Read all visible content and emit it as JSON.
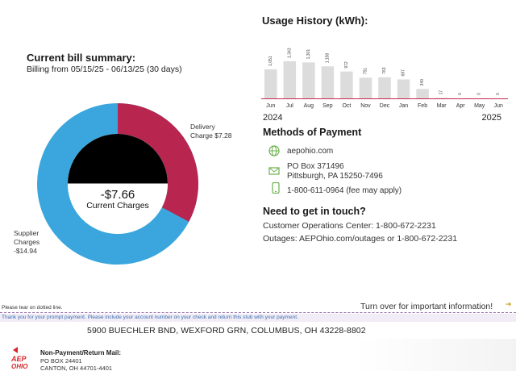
{
  "bill_summary": {
    "title": "Current bill summary:",
    "period": "Billing from 05/15/25 - 06/13/25 (30 days)",
    "current_charges_amount": "-$7.66",
    "current_charges_label": "Current Charges",
    "delivery_label_line1": "Delivery",
    "delivery_label_line2": "Charge $7.28",
    "supplier_label_line1": "Supplier",
    "supplier_label_line2": "Charges",
    "supplier_label_line3": "-$14.94",
    "delivery_value": 7.28,
    "supplier_value": -14.94,
    "delivery_color": "#b8264f",
    "supplier_color": "#3aa6dd"
  },
  "chart_data": {
    "type": "bar",
    "title": "Usage History (kWh):",
    "categories": [
      "Jun",
      "Jul",
      "Aug",
      "Sep",
      "Oct",
      "Nov",
      "Dec",
      "Jan",
      "Feb",
      "Mar",
      "Apr",
      "May",
      "Jun"
    ],
    "value_labels": [
      "1,051",
      "1,343",
      "1,301",
      "1,158",
      "972",
      "751",
      "763",
      "687",
      "340",
      "17",
      "0",
      "0",
      "0"
    ],
    "values": [
      1051,
      1343,
      1301,
      1158,
      972,
      751,
      763,
      687,
      340,
      17,
      0,
      0,
      0
    ],
    "year_start": "2024",
    "year_end": "2025",
    "ylim": [
      0,
      1400
    ],
    "bar_color": "#dcdcdc",
    "baseline_color": "#c9264f",
    "grid": false
  },
  "payment": {
    "title": "Methods of Payment",
    "website": "aepohio.com",
    "po_box": "PO Box 371496",
    "city_line": "Pittsburgh, PA 15250-7496",
    "phone": "1-800-611-0964 (fee may apply)",
    "icon_color": "#6ab04c"
  },
  "contact": {
    "title": "Need to get in touch?",
    "customer_ops": "Customer Operations Center: 1-800-672-2231",
    "outages": "Outages: AEPOhio.com/outages or 1-800-672-2231"
  },
  "stub": {
    "tear_note": "Please tear on dotted line.",
    "turn_over": "Turn over for important information!",
    "thanks": "Thank you for your prompt payment. Please include your account number on your check and return this stub with your payment.",
    "service_address": "5900 BUECHLER BND,  WEXFORD GRN, COLUMBUS, OH 43228-8802",
    "return_title": "Non-Payment/Return Mail:",
    "return_line1": "PO BOX 24401",
    "return_line2": "CANTON, OH  44701-4401",
    "logo_text_1": "AEP",
    "logo_text_2": "OHIO",
    "logo_color": "#d7262b"
  }
}
